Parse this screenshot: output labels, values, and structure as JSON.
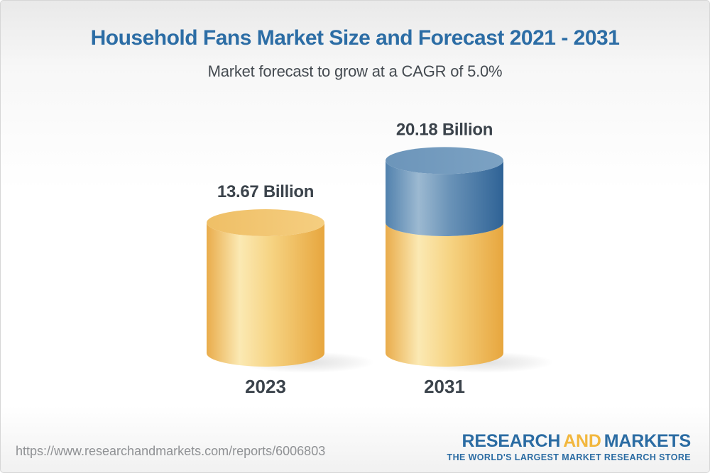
{
  "header": {
    "title": "Household Fans Market Size and Forecast 2021 - 2031",
    "subtitle": "Market forecast to grow at a CAGR of 5.0%"
  },
  "chart_data": {
    "type": "bar",
    "style": "3d-cylinder",
    "title": "Household Fans Market Size and Forecast 2021 - 2031",
    "subtitle": "Market forecast to grow at a CAGR of 5.0%",
    "cagr_percent": 5.0,
    "categories": [
      "2023",
      "2031"
    ],
    "values": [
      13.67,
      20.18
    ],
    "value_labels": [
      "13.67 Billion",
      "20.18 Billion"
    ],
    "bars": [
      {
        "category": "2023",
        "total": 13.67,
        "segments": [
          {
            "value": 13.67,
            "palette": "gold"
          }
        ]
      },
      {
        "category": "2031",
        "total": 20.18,
        "segments": [
          {
            "value": 13.67,
            "palette": "gold"
          },
          {
            "value": 6.51,
            "palette": "blue"
          }
        ]
      }
    ],
    "colors": {
      "gold": "#F2C674",
      "blue": "#6E97BB",
      "label_text": "#3B434B",
      "title_blue": "#2C6DA5"
    },
    "legend": null,
    "grid": false
  },
  "footer": {
    "url": "https://www.researchandmarkets.com/reports/6006803",
    "logo": {
      "part1": "RESEARCH",
      "part2": "AND",
      "part3": "MARKETS",
      "tagline": "THE WORLD'S LARGEST MARKET RESEARCH STORE"
    },
    "brand_colors": {
      "blue": "#2B6CA3",
      "gold": "#F2B73E"
    }
  }
}
